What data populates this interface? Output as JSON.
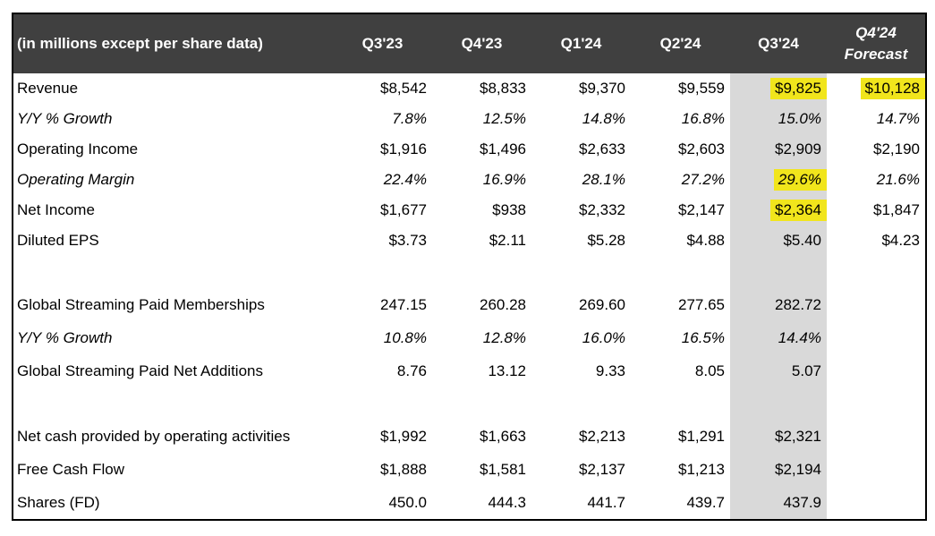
{
  "table": {
    "header": {
      "label_column": "(in millions except per share data)",
      "columns": [
        {
          "label": "Q3'23"
        },
        {
          "label": "Q4'23"
        },
        {
          "label": "Q1'24"
        },
        {
          "label": "Q2'24"
        },
        {
          "label": "Q3'24"
        },
        {
          "label": "Q4'24",
          "label2": "Forecast",
          "italic": true
        }
      ]
    },
    "rows": [
      {
        "label": "Revenue",
        "italic": false,
        "values": [
          "$8,542",
          "$8,833",
          "$9,370",
          "$9,559",
          "$9,825",
          "$10,128"
        ],
        "highlight": [
          4,
          5
        ]
      },
      {
        "label": "Y/Y % Growth",
        "italic": true,
        "values": [
          "7.8%",
          "12.5%",
          "14.8%",
          "16.8%",
          "15.0%",
          "14.7%"
        ]
      },
      {
        "label": "Operating Income",
        "italic": false,
        "values": [
          "$1,916",
          "$1,496",
          "$2,633",
          "$2,603",
          "$2,909",
          "$2,190"
        ]
      },
      {
        "label": "Operating Margin",
        "italic": true,
        "values": [
          "22.4%",
          "16.9%",
          "28.1%",
          "27.2%",
          "29.6%",
          "21.6%"
        ],
        "highlight": [
          4
        ]
      },
      {
        "label": "Net Income",
        "italic": false,
        "values": [
          "$1,677",
          "$938",
          "$2,332",
          "$2,147",
          "$2,364",
          "$1,847"
        ],
        "highlight": [
          4
        ]
      },
      {
        "label": "Diluted EPS",
        "italic": false,
        "values": [
          "$3.73",
          "$2.11",
          "$5.28",
          "$4.88",
          "$5.40",
          "$4.23"
        ]
      },
      {
        "blank": true
      },
      {
        "label": "Global Streaming Paid Memberships",
        "italic": false,
        "values": [
          "247.15",
          "260.28",
          "269.60",
          "277.65",
          "282.72",
          ""
        ]
      },
      {
        "label": "Y/Y % Growth",
        "italic": true,
        "values": [
          "10.8%",
          "12.8%",
          "16.0%",
          "16.5%",
          "14.4%",
          ""
        ]
      },
      {
        "label": "Global Streaming Paid Net Additions",
        "italic": false,
        "values": [
          "8.76",
          "13.12",
          "9.33",
          "8.05",
          "5.07",
          ""
        ]
      },
      {
        "blank": true
      },
      {
        "label": "Net cash provided by operating activities",
        "italic": false,
        "values": [
          "$1,992",
          "$1,663",
          "$2,213",
          "$1,291",
          "$2,321",
          ""
        ]
      },
      {
        "label": "Free Cash Flow",
        "italic": false,
        "values": [
          "$1,888",
          "$1,581",
          "$2,137",
          "$1,213",
          "$2,194",
          ""
        ]
      },
      {
        "label": "Shares (FD)",
        "italic": false,
        "values": [
          "450.0",
          "444.3",
          "441.7",
          "439.7",
          "437.9",
          ""
        ]
      }
    ],
    "colors": {
      "header_bg": "#404040",
      "header_text": "#ffffff",
      "shaded_column_bg": "#d9d9d9",
      "cell_highlight": "#f1e51c",
      "border": "#000000",
      "body_text": "#000000"
    },
    "shaded_column_index": 4
  }
}
